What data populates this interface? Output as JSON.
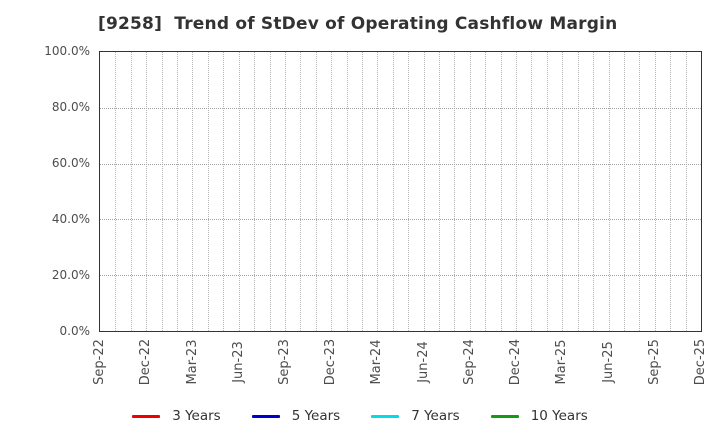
{
  "chart_data": {
    "type": "line",
    "title": "[9258]  Trend of StDev of Operating Cashflow Margin",
    "x_tick_labels": [
      "Sep-22",
      "Dec-22",
      "Mar-23",
      "Jun-23",
      "Sep-23",
      "Dec-23",
      "Mar-24",
      "Jun-24",
      "Sep-24",
      "Dec-24",
      "Mar-25",
      "Jun-25",
      "Sep-25",
      "Dec-25"
    ],
    "x_label_interval_months": 3,
    "x_month_count": 40,
    "x_minor_gridlines": "monthly",
    "y_ticks": [
      0,
      20,
      40,
      60,
      80,
      100
    ],
    "y_tick_labels": [
      "0.0%",
      "20.0%",
      "40.0%",
      "60.0%",
      "80.0%",
      "100.0%"
    ],
    "ylim": [
      0,
      100
    ],
    "grid": "dotted",
    "legend_position": "bottom-center",
    "series": [
      {
        "name": "3 Years",
        "color": "#ee0000",
        "values": []
      },
      {
        "name": "5 Years",
        "color": "#0000cc",
        "values": []
      },
      {
        "name": "7 Years",
        "color": "#00dde6",
        "values": []
      },
      {
        "name": "10 Years",
        "color": "#149b14",
        "values": []
      }
    ],
    "colors": {
      "title_text": "#333333",
      "tick_text": "#4d4d4d",
      "axis_border": "#333333",
      "gridline": "#b5b5b5"
    }
  }
}
